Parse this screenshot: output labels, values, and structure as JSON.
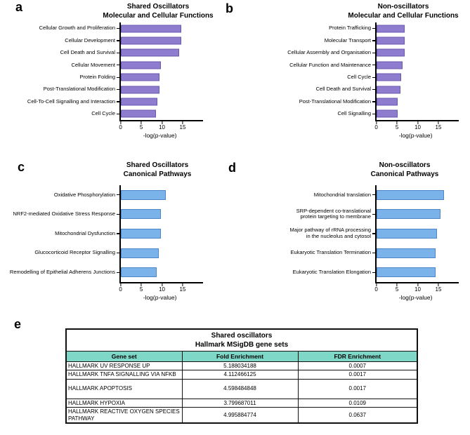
{
  "figure": {
    "panel_letters": [
      "a",
      "b",
      "c",
      "d",
      "e"
    ]
  },
  "chart_data": [
    {
      "type": "bar",
      "orientation": "horizontal",
      "title": "Shared Oscillators",
      "subtitle": "Molecular and Cellular Functions",
      "categories": [
        "Cellular Growth and Proliferation",
        "Cellular Development",
        "Cell Death and Survival",
        "Cellular Movement",
        "Protein Folding",
        "Post-Translational Modification",
        "Cell-To-Cell Signalling and Interaction",
        "Cell Cycle"
      ],
      "values": [
        14.7,
        14.7,
        14.2,
        9.8,
        9.4,
        9.4,
        8.9,
        8.6
      ],
      "xlabel": "-log(p-value)",
      "xlim": [
        0,
        19
      ],
      "xticks": [
        0,
        5,
        10,
        15
      ],
      "grid": false,
      "bar_color": "#8e7ccf",
      "bar_border": "#6a58ae"
    },
    {
      "type": "bar",
      "orientation": "horizontal",
      "title": "Non-oscillators",
      "subtitle": "Molecular and Cellular Functions",
      "categories": [
        "Protein Trafficking",
        "Molecular Transport",
        "Cellular Assembly and Organisation",
        "Cellular Function and Maintenance",
        "Cell Cycle",
        "Cell Death and Survival",
        "Post-Translational Modification",
        "Cell Signalling"
      ],
      "values": [
        6.8,
        6.8,
        6.8,
        6.4,
        6.0,
        5.9,
        5.2,
        5.1
      ],
      "xlabel": "-log(p-value)",
      "xlim": [
        0,
        19
      ],
      "xticks": [
        0,
        5,
        10,
        15
      ],
      "grid": false,
      "bar_color": "#8e7ccf",
      "bar_border": "#6a58ae"
    },
    {
      "type": "bar",
      "orientation": "horizontal",
      "title": "Shared Oscillators",
      "subtitle": "Canonical Pathways",
      "categories": [
        "Oxidative Phosphorylation",
        "NRF2-mediated Oxidative Stress Response",
        "Mitochondrial Dysfunction",
        "Glucocorticoid Receptor Signalling",
        "Remodelling of Epithelial Adherens Junctions"
      ],
      "values": [
        11.0,
        9.8,
        9.8,
        9.3,
        8.7
      ],
      "xlabel": "-log(p-value)",
      "xlim": [
        0,
        19
      ],
      "xticks": [
        0,
        5,
        10,
        15
      ],
      "grid": false,
      "bar_color": "#79b3ea",
      "bar_border": "#4d86c8"
    },
    {
      "type": "bar",
      "orientation": "horizontal",
      "title": "Non-oscillators",
      "subtitle": "Canonical Pathways",
      "categories": [
        "Mitochondrial translation",
        "SRP-dependent co-translational\nprotein targeting to membrane",
        "Major pathway of rRNA processing\nin the nucleolus and cytosol",
        "Eukaryotic Translation Termination",
        "Eukaryotic Translation Elongation"
      ],
      "values": [
        16.3,
        15.5,
        14.7,
        14.4,
        14.3
      ],
      "xlabel": "-log(p-value)",
      "xlim": [
        0,
        19
      ],
      "xticks": [
        0,
        5,
        10,
        15
      ],
      "grid": false,
      "bar_color": "#79b3ea",
      "bar_border": "#4d86c8"
    },
    {
      "type": "table",
      "title_line1": "Shared oscillators",
      "title_line2": "Hallmark MSigDB gene sets",
      "columns": [
        "Gene set",
        "Fold Enrichment",
        "FDR Enrichment"
      ],
      "rows": [
        [
          "HALLMARK UV RESPONSE UP",
          "5.188034188",
          "0.0007"
        ],
        [
          "HALLMARK TNFA SIGNALLING VIA NFKB",
          "4.112466125",
          "0.0017"
        ],
        [
          "HALLMARK APOPTOSIS",
          "4.598484848",
          "0.0017"
        ],
        [
          "HALLMARK HYPOXIA",
          "3.799687011",
          "0.0109"
        ],
        [
          "HALLMARK REACTIVE OXYGEN SPECIES PATHWAY",
          "4.995884774",
          "0.0637"
        ]
      ],
      "header_bg": "#7fd8c7"
    }
  ]
}
